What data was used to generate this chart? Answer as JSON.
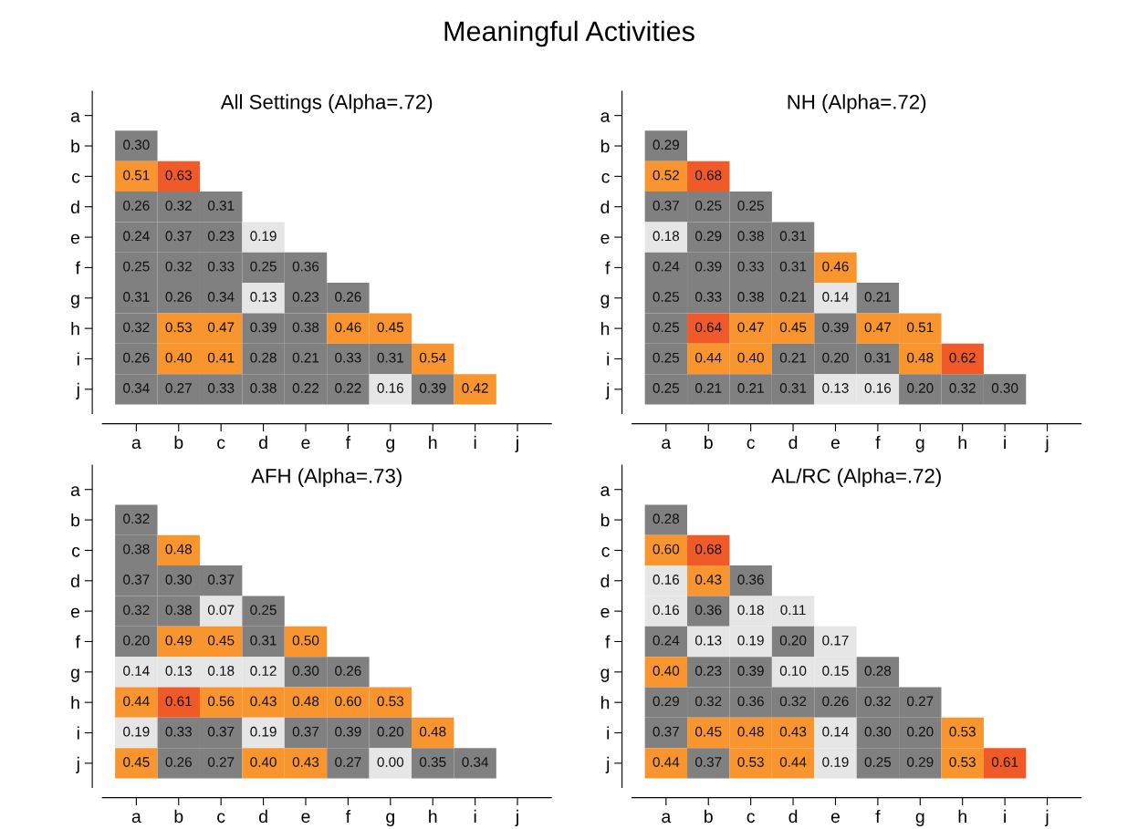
{
  "chart_data": [
    {
      "type": "heatmap",
      "title": "Meaningful Activities",
      "subtitle": "All Settings (Alpha=.72)",
      "categories": [
        "a",
        "b",
        "c",
        "d",
        "e",
        "f",
        "g",
        "h",
        "i",
        "j"
      ],
      "y_categories": [
        "a",
        "b",
        "c",
        "d",
        "e",
        "f",
        "g",
        "h",
        "i",
        "j"
      ],
      "colors": [
        "#e6e6e6",
        "#808080",
        "#f8952e",
        "#f05a28"
      ],
      "grid": false,
      "legend": false,
      "cells": [
        [
          null,
          null,
          null,
          null,
          null,
          null,
          null,
          null,
          null,
          null
        ],
        [
          0.3,
          null,
          null,
          null,
          null,
          null,
          null,
          null,
          null,
          null
        ],
        [
          0.51,
          0.63,
          null,
          null,
          null,
          null,
          null,
          null,
          null,
          null
        ],
        [
          0.26,
          0.32,
          0.31,
          null,
          null,
          null,
          null,
          null,
          null,
          null
        ],
        [
          0.24,
          0.37,
          0.23,
          0.19,
          null,
          null,
          null,
          null,
          null,
          null
        ],
        [
          0.25,
          0.32,
          0.33,
          0.25,
          0.36,
          null,
          null,
          null,
          null,
          null
        ],
        [
          0.31,
          0.26,
          0.34,
          0.13,
          0.23,
          0.26,
          null,
          null,
          null,
          null
        ],
        [
          0.32,
          0.53,
          0.47,
          0.39,
          0.38,
          0.46,
          0.45,
          null,
          null,
          null
        ],
        [
          0.26,
          0.4,
          0.41,
          0.28,
          0.21,
          0.33,
          0.31,
          0.54,
          null,
          null
        ],
        [
          0.34,
          0.27,
          0.33,
          0.38,
          0.22,
          0.22,
          0.16,
          0.39,
          0.42,
          null
        ]
      ],
      "cell_labels": [
        [
          null,
          null,
          null,
          null,
          null,
          null,
          null,
          null,
          null,
          null
        ],
        [
          "0.30",
          null,
          null,
          null,
          null,
          null,
          null,
          null,
          null,
          null
        ],
        [
          "0.51",
          "0.63",
          null,
          null,
          null,
          null,
          null,
          null,
          null,
          null
        ],
        [
          "0.26",
          "0.32",
          "0.31",
          null,
          null,
          null,
          null,
          null,
          null,
          null
        ],
        [
          "0.24",
          "0.37",
          "0.23",
          "0.19",
          null,
          null,
          null,
          null,
          null,
          null
        ],
        [
          "0.25",
          "0.32",
          "0.33",
          "0.25",
          "0.36",
          null,
          null,
          null,
          null,
          null
        ],
        [
          "0.31",
          "0.26",
          "0.34",
          "0.13",
          "0.23",
          "0.26",
          null,
          null,
          null,
          null
        ],
        [
          "0.32",
          "0.53",
          "0.47",
          "0.39",
          "0.38",
          "0.46",
          "0.45",
          null,
          null,
          null
        ],
        [
          "0.26",
          "0.40",
          "0.41",
          "0.28",
          "0.21",
          "0.33",
          "0.31",
          "0.54",
          null,
          null
        ],
        [
          "0.34",
          "0.27",
          "0.33",
          "0.38",
          "0.22",
          "0.22",
          "0.16",
          "0.39",
          "0.42",
          null
        ]
      ]
    },
    {
      "type": "heatmap",
      "subtitle": "NH (Alpha=.72)",
      "categories": [
        "a",
        "b",
        "c",
        "d",
        "e",
        "f",
        "g",
        "h",
        "i",
        "j"
      ],
      "y_categories": [
        "a",
        "b",
        "c",
        "d",
        "e",
        "f",
        "g",
        "h",
        "i",
        "j"
      ],
      "colors": [
        "#e6e6e6",
        "#808080",
        "#f8952e",
        "#f05a28"
      ],
      "grid": false,
      "legend": false,
      "cells": [
        [
          null,
          null,
          null,
          null,
          null,
          null,
          null,
          null,
          null,
          null
        ],
        [
          0.29,
          null,
          null,
          null,
          null,
          null,
          null,
          null,
          null,
          null
        ],
        [
          0.52,
          0.68,
          null,
          null,
          null,
          null,
          null,
          null,
          null,
          null
        ],
        [
          0.37,
          0.25,
          0.25,
          null,
          null,
          null,
          null,
          null,
          null,
          null
        ],
        [
          0.18,
          0.29,
          0.38,
          0.31,
          null,
          null,
          null,
          null,
          null,
          null
        ],
        [
          0.24,
          0.39,
          0.33,
          0.31,
          0.46,
          null,
          null,
          null,
          null,
          null
        ],
        [
          0.25,
          0.33,
          0.38,
          0.21,
          0.14,
          0.21,
          null,
          null,
          null,
          null
        ],
        [
          0.25,
          0.64,
          0.47,
          0.45,
          0.39,
          0.47,
          0.51,
          null,
          null,
          null
        ],
        [
          0.25,
          0.44,
          0.4,
          0.21,
          0.2,
          0.31,
          0.48,
          0.62,
          null,
          null
        ],
        [
          0.25,
          0.21,
          0.21,
          0.31,
          0.13,
          0.16,
          0.2,
          0.32,
          0.3,
          null
        ]
      ],
      "cell_labels": [
        [
          null,
          null,
          null,
          null,
          null,
          null,
          null,
          null,
          null,
          null
        ],
        [
          "0.29",
          null,
          null,
          null,
          null,
          null,
          null,
          null,
          null,
          null
        ],
        [
          "0.52",
          "0.68",
          null,
          null,
          null,
          null,
          null,
          null,
          null,
          null
        ],
        [
          "0.37",
          "0.25",
          "0.25",
          null,
          null,
          null,
          null,
          null,
          null,
          null
        ],
        [
          "0.18",
          "0.29",
          "0.38",
          "0.31",
          null,
          null,
          null,
          null,
          null,
          null
        ],
        [
          "0.24",
          "0.39",
          "0.33",
          "0.31",
          "0.46",
          null,
          null,
          null,
          null,
          null
        ],
        [
          "0.25",
          "0.33",
          "0.38",
          "0.21",
          "0.14",
          "0.21",
          null,
          null,
          null,
          null
        ],
        [
          "0.25",
          "0.64",
          "0.47",
          "0.45",
          "0.39",
          "0.47",
          "0.51",
          null,
          null,
          null
        ],
        [
          "0.25",
          "0.44",
          "0.40",
          "0.21",
          "0.20",
          "0.31",
          "0.48",
          "0.62",
          null,
          null
        ],
        [
          "0.25",
          "0.21",
          "0.21",
          "0.31",
          "0.13",
          "0.16",
          "0.20",
          "0.32",
          "0.30",
          null
        ]
      ]
    },
    {
      "type": "heatmap",
      "subtitle": "AFH (Alpha=.73)",
      "categories": [
        "a",
        "b",
        "c",
        "d",
        "e",
        "f",
        "g",
        "h",
        "i",
        "j"
      ],
      "y_categories": [
        "a",
        "b",
        "c",
        "d",
        "e",
        "f",
        "g",
        "h",
        "i",
        "j"
      ],
      "colors": [
        "#e6e6e6",
        "#808080",
        "#f8952e",
        "#f05a28"
      ],
      "grid": false,
      "legend": false,
      "cells": [
        [
          null,
          null,
          null,
          null,
          null,
          null,
          null,
          null,
          null,
          null
        ],
        [
          0.32,
          null,
          null,
          null,
          null,
          null,
          null,
          null,
          null,
          null
        ],
        [
          0.38,
          0.48,
          null,
          null,
          null,
          null,
          null,
          null,
          null,
          null
        ],
        [
          0.37,
          0.3,
          0.37,
          null,
          null,
          null,
          null,
          null,
          null,
          null
        ],
        [
          0.32,
          0.38,
          0.07,
          0.25,
          null,
          null,
          null,
          null,
          null,
          null
        ],
        [
          0.2,
          0.49,
          0.45,
          0.31,
          0.5,
          null,
          null,
          null,
          null,
          null
        ],
        [
          0.14,
          0.13,
          0.18,
          0.12,
          0.3,
          0.26,
          null,
          null,
          null,
          null
        ],
        [
          0.44,
          0.61,
          0.56,
          0.43,
          0.48,
          0.6,
          0.53,
          null,
          null,
          null
        ],
        [
          0.19,
          0.33,
          0.37,
          0.19,
          0.37,
          0.39,
          0.2,
          0.48,
          null,
          null
        ],
        [
          0.45,
          0.26,
          0.27,
          0.4,
          0.43,
          0.27,
          0.0,
          0.35,
          0.34,
          null
        ]
      ],
      "cell_labels": [
        [
          null,
          null,
          null,
          null,
          null,
          null,
          null,
          null,
          null,
          null
        ],
        [
          "0.32",
          null,
          null,
          null,
          null,
          null,
          null,
          null,
          null,
          null
        ],
        [
          "0.38",
          "0.48",
          null,
          null,
          null,
          null,
          null,
          null,
          null,
          null
        ],
        [
          "0.37",
          "0.30",
          "0.37",
          null,
          null,
          null,
          null,
          null,
          null,
          null
        ],
        [
          "0.32",
          "0.38",
          "0.07",
          "0.25",
          null,
          null,
          null,
          null,
          null,
          null
        ],
        [
          "0.20",
          "0.49",
          "0.45",
          "0.31",
          "0.50",
          null,
          null,
          null,
          null,
          null
        ],
        [
          "0.14",
          "0.13",
          "0.18",
          "0.12",
          "0.30",
          "0.26",
          null,
          null,
          null,
          null
        ],
        [
          "0.44",
          "0.61",
          "0.56",
          "0.43",
          "0.48",
          "0.60",
          "0.53",
          null,
          null,
          null
        ],
        [
          "0.19",
          "0.33",
          "0.37",
          "0.19",
          "0.37",
          "0.39",
          "0.20",
          "0.48",
          null,
          null
        ],
        [
          "0.45",
          "0.26",
          "0.27",
          "0.40",
          "0.43",
          "0.27",
          "0.00",
          "0.35",
          "0.34",
          null
        ]
      ]
    },
    {
      "type": "heatmap",
      "subtitle": "AL/RC (Alpha=.72)",
      "categories": [
        "a",
        "b",
        "c",
        "d",
        "e",
        "f",
        "g",
        "h",
        "i",
        "j"
      ],
      "y_categories": [
        "a",
        "b",
        "c",
        "d",
        "e",
        "f",
        "g",
        "h",
        "i",
        "j"
      ],
      "colors": [
        "#e6e6e6",
        "#808080",
        "#f8952e",
        "#f05a28"
      ],
      "grid": false,
      "legend": false,
      "cells": [
        [
          null,
          null,
          null,
          null,
          null,
          null,
          null,
          null,
          null,
          null
        ],
        [
          0.28,
          null,
          null,
          null,
          null,
          null,
          null,
          null,
          null,
          null
        ],
        [
          0.6,
          0.68,
          null,
          null,
          null,
          null,
          null,
          null,
          null,
          null
        ],
        [
          0.16,
          0.43,
          0.36,
          null,
          null,
          null,
          null,
          null,
          null,
          null
        ],
        [
          0.16,
          0.36,
          0.18,
          0.11,
          null,
          null,
          null,
          null,
          null,
          null
        ],
        [
          0.24,
          0.13,
          0.19,
          0.2,
          0.17,
          null,
          null,
          null,
          null,
          null
        ],
        [
          0.4,
          0.23,
          0.39,
          0.1,
          0.15,
          0.28,
          null,
          null,
          null,
          null
        ],
        [
          0.29,
          0.32,
          0.36,
          0.32,
          0.26,
          0.32,
          0.27,
          null,
          null,
          null
        ],
        [
          0.37,
          0.45,
          0.48,
          0.43,
          0.14,
          0.3,
          0.2,
          0.53,
          null,
          null
        ],
        [
          0.44,
          0.37,
          0.53,
          0.44,
          0.19,
          0.25,
          0.29,
          0.53,
          0.61,
          null
        ]
      ],
      "cell_labels": [
        [
          null,
          null,
          null,
          null,
          null,
          null,
          null,
          null,
          null,
          null
        ],
        [
          "0.28",
          null,
          null,
          null,
          null,
          null,
          null,
          null,
          null,
          null
        ],
        [
          "0.60",
          "0.68",
          null,
          null,
          null,
          null,
          null,
          null,
          null,
          null
        ],
        [
          "0.16",
          "0.43",
          "0.36",
          null,
          null,
          null,
          null,
          null,
          null,
          null
        ],
        [
          "0.16",
          "0.36",
          "0.18",
          "0.11",
          null,
          null,
          null,
          null,
          null,
          null
        ],
        [
          "0.24",
          "0.13",
          "0.19",
          "0.20",
          "0.17",
          null,
          null,
          null,
          null,
          null
        ],
        [
          "0.40",
          "0.23",
          "0.39",
          "0.10",
          "0.15",
          "0.28",
          null,
          null,
          null,
          null
        ],
        [
          "0.29",
          "0.32",
          "0.36",
          "0.32",
          "0.26",
          "0.32",
          "0.27",
          null,
          null,
          null
        ],
        [
          "0.37",
          "0.45",
          "0.48",
          "0.43",
          "0.14",
          "0.30",
          "0.20",
          "0.53",
          null,
          null
        ],
        [
          "0.44",
          "0.37",
          "0.53",
          "0.44",
          "0.19",
          "0.25",
          "0.29",
          "0.53",
          "0.61",
          null
        ]
      ]
    }
  ]
}
